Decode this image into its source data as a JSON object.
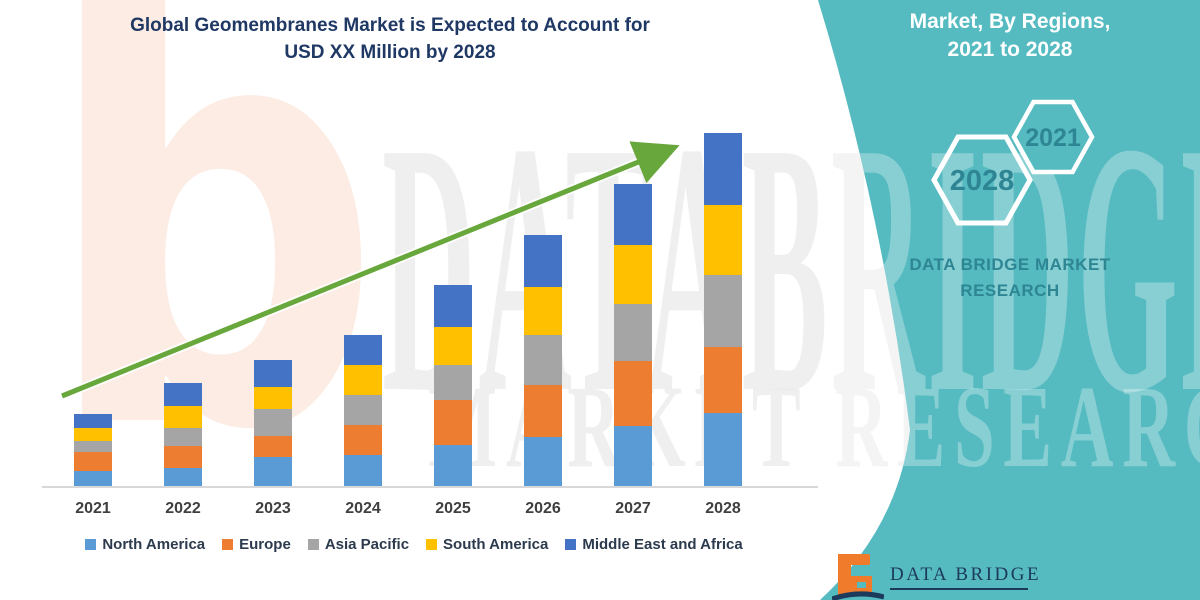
{
  "header": {
    "title_line1": "Global Geomembranes Market is Expected to Account for",
    "title_line2": "USD XX Million by 2028"
  },
  "side_panel": {
    "heading_line1": "Market, By Regions,",
    "heading_line2": "2021 to 2028",
    "hexagons": [
      {
        "label": "2028"
      },
      {
        "label": "2021"
      }
    ],
    "brand_line1": "DATA BRIDGE MARKET",
    "brand_line2": "RESEARCH",
    "panel_color": "#55BBC1",
    "panel_text_color": "#2E8694"
  },
  "watermark": {
    "line1": "DATABRIDGE",
    "line2": "MARKET RESEARCH",
    "peach_glyph": "b"
  },
  "logo": {
    "text": "DATA BRIDGE"
  },
  "chart_data": {
    "type": "bar",
    "subtype": "stacked-column",
    "title": "Global Geomembranes Market is Expected to Account for USD XX Million by 2028",
    "xlabel": "",
    "ylabel": "",
    "unit_note": "values hidden on chart (USD XX Million); series values are relative estimates",
    "grid": false,
    "legend_position": "bottom",
    "categories": [
      "2021",
      "2022",
      "2023",
      "2024",
      "2025",
      "2026",
      "2027",
      "2028"
    ],
    "series": [
      {
        "name": "North America",
        "color": "#5B9BD5",
        "values": [
          15,
          18,
          29,
          31,
          41,
          49,
          60,
          73
        ]
      },
      {
        "name": "Europe",
        "color": "#ED7D31",
        "values": [
          19,
          22,
          21,
          30,
          45,
          52,
          65,
          66
        ]
      },
      {
        "name": "Asia Pacific",
        "color": "#A5A5A5",
        "values": [
          11,
          18,
          27,
          30,
          35,
          50,
          57,
          72
        ]
      },
      {
        "name": "South America",
        "color": "#FFC000",
        "values": [
          13,
          22,
          22,
          30,
          38,
          48,
          59,
          70
        ]
      },
      {
        "name": "Middle East and Africa",
        "color": "#4472C4",
        "values": [
          14,
          23,
          27,
          30,
          42,
          52,
          61,
          72
        ]
      }
    ],
    "totals": [
      72,
      103,
      126,
      151,
      201,
      251,
      302,
      353
    ],
    "trend_arrow": {
      "present": true,
      "color": "#68A73C",
      "direction": "up-right"
    }
  }
}
